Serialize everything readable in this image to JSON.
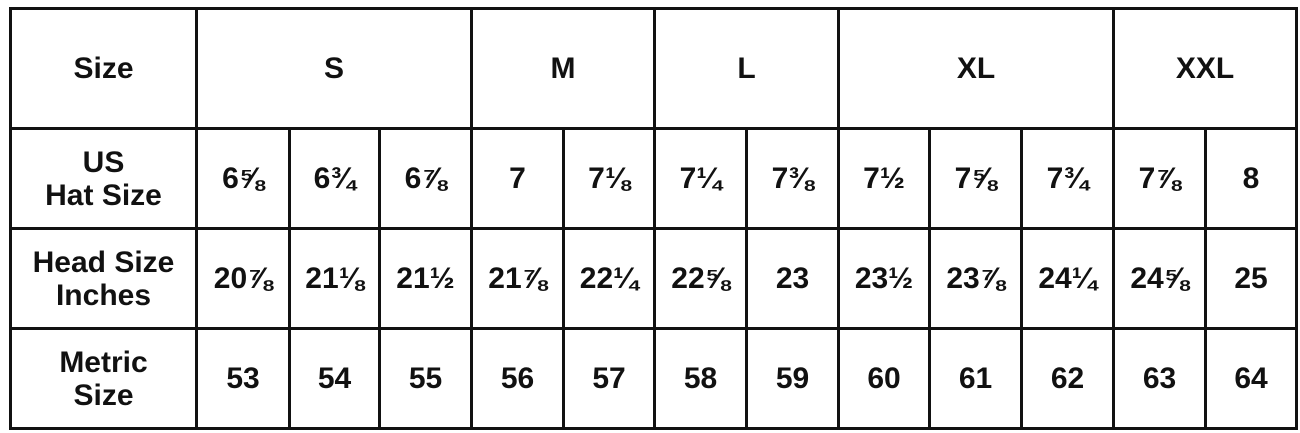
{
  "table": {
    "header": [
      "Size",
      "S",
      "M",
      "L",
      "XL",
      "XXL"
    ],
    "rows": [
      {
        "label": [
          "US",
          "Hat Size"
        ],
        "cells": [
          "6⅝",
          "6¾",
          "6⅞",
          "7",
          "7⅛",
          "7¼",
          "7⅜",
          "7½",
          "7⅝",
          "7¾",
          "7⅞",
          "8"
        ]
      },
      {
        "label": [
          "Head Size",
          "Inches"
        ],
        "cells": [
          "20⅞",
          "21⅛",
          "21½",
          "21⅞",
          "22¼",
          "22⅝",
          "23",
          "23½",
          "23⅞",
          "24¼",
          "24⅝",
          "25"
        ]
      },
      {
        "label": [
          "Metric",
          "Size"
        ],
        "cells": [
          53,
          54,
          55,
          56,
          57,
          58,
          59,
          60,
          61,
          62,
          63,
          64
        ]
      }
    ]
  }
}
